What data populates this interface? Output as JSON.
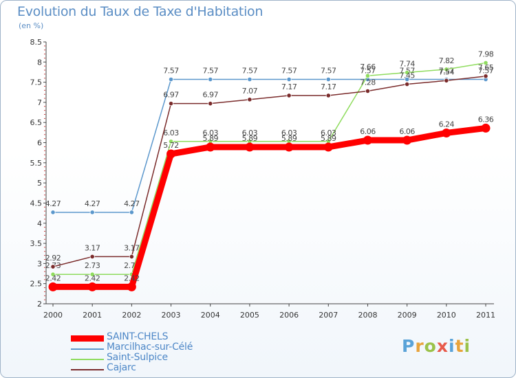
{
  "header": {
    "title": "Evolution du Taux de Taxe d'Habitation",
    "unit": "(en %)"
  },
  "logo": {
    "text": "Proxiti",
    "colors": [
      "#5aa3d8",
      "#e8a33a",
      "#9bc24a",
      "#e85a4a",
      "#5aa3d8",
      "#e8a33a",
      "#9bc24a"
    ]
  },
  "chart_data": {
    "type": "line",
    "x": [
      "2000",
      "2001",
      "2002",
      "2003",
      "2004",
      "2005",
      "2006",
      "2007",
      "2008",
      "2009",
      "2010",
      "2011"
    ],
    "ylim": [
      2,
      8.5
    ],
    "yticks": [
      "2",
      "2.5",
      "3",
      "3.5",
      "4",
      "4.5",
      "5",
      "5.5",
      "6",
      "6.5",
      "7",
      "7.5",
      "8",
      "8.5"
    ],
    "grid": false,
    "legend_position": "bottom-left",
    "series": [
      {
        "name": "Marcilhac-sur-Célé",
        "color": "#5b97cc",
        "values": [
          4.27,
          4.27,
          4.27,
          7.57,
          7.57,
          7.57,
          7.57,
          7.57,
          7.57,
          7.57,
          7.57,
          7.57
        ],
        "labels": [
          "4.27",
          "4.27",
          "4.27",
          "7.57",
          "7.57",
          "7.57",
          "7.57",
          "7.57",
          "7.57",
          "7.57",
          "7.57",
          "7.57"
        ]
      },
      {
        "name": "Saint-Sulpice",
        "color": "#8fdc5e",
        "values": [
          2.73,
          2.73,
          2.73,
          6.03,
          6.03,
          6.03,
          6.03,
          6.03,
          7.66,
          7.74,
          7.82,
          7.98
        ],
        "labels": [
          "2.73",
          "2.73",
          "2.73",
          "6.03",
          "6.03",
          "6.03",
          "6.03",
          "6.03",
          "7.66",
          "7.74",
          "7.82",
          "7.98"
        ]
      },
      {
        "name": "Cajarc",
        "color": "#7a2b2b",
        "values": [
          2.92,
          3.17,
          3.17,
          6.97,
          6.97,
          7.07,
          7.17,
          7.17,
          7.28,
          7.45,
          7.54,
          7.65
        ],
        "labels": [
          "2.92",
          "3.17",
          "3.17",
          "6.97",
          "6.97",
          "7.07",
          "7.17",
          "7.17",
          "7.28",
          "7.45",
          "7.54",
          "7.65"
        ]
      },
      {
        "name": "SAINT-CHELS",
        "color": "#ff0000",
        "values": [
          2.42,
          2.42,
          2.42,
          5.72,
          5.89,
          5.89,
          5.89,
          5.89,
          6.06,
          6.06,
          6.24,
          6.36
        ],
        "labels": [
          "2.42",
          "2.42",
          "2.42",
          "5.72",
          "5.89",
          "5.89",
          "5.89",
          "5.89",
          "6.06",
          "6.06",
          "6.24",
          "6.36"
        ]
      }
    ],
    "legend": [
      "SAINT-CHELS",
      "Marcilhac-sur-Célé",
      "Saint-Sulpice",
      "Cajarc"
    ]
  }
}
